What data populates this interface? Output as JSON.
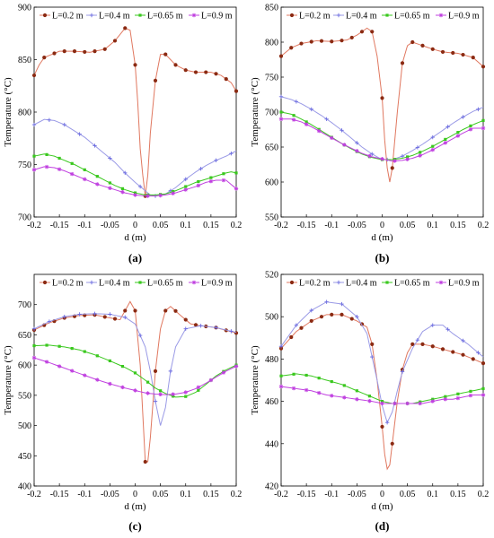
{
  "figure": {
    "series_names": [
      "L=0.2 m",
      "L=0.4 m",
      "L=0.65 m",
      "L=0.9 m"
    ],
    "series_colors": [
      "#8b2a12",
      "#6b6be0",
      "#3ac81e",
      "#c040e0"
    ],
    "series_line_colors": [
      "#e07860",
      "#9a9ae6",
      "#3ac81e",
      "#c040e0"
    ],
    "series_markers": [
      "circle",
      "plus",
      "filled-square",
      "star"
    ]
  },
  "chart_data": [
    {
      "type": "line",
      "panel_label": "(a)",
      "xlabel": "d (m)",
      "ylabel": "Temperature (°C)",
      "xlim": [
        -0.2,
        0.2
      ],
      "ylim": [
        700,
        900
      ],
      "xticks": [
        -0.2,
        -0.15,
        -0.1,
        -0.05,
        0,
        0.05,
        0.1,
        0.15,
        0.2
      ],
      "xtick_labels": [
        "-0.2",
        "-0.15",
        "-0.1",
        "-0.05",
        "0",
        "0.05",
        "0.1",
        "0.15",
        "0.2"
      ],
      "yticks": [
        700,
        750,
        800,
        850,
        900
      ],
      "ytick_labels": [
        "700",
        "750",
        "800",
        "850",
        "900"
      ],
      "grid": false,
      "legend": "top",
      "series": [
        {
          "name": "L=0.2 m",
          "x": [
            -0.2,
            -0.19,
            -0.18,
            -0.15,
            -0.12,
            -0.09,
            -0.06,
            -0.04,
            -0.02,
            -0.01,
            0.0,
            0.005,
            0.01,
            0.015,
            0.02,
            0.025,
            0.03,
            0.04,
            0.05,
            0.06,
            0.08,
            0.1,
            0.12,
            0.15,
            0.17,
            0.19,
            0.2
          ],
          "y": [
            835,
            845,
            852,
            858,
            858,
            857,
            860,
            868,
            880,
            878,
            845,
            810,
            765,
            740,
            720,
            740,
            780,
            830,
            855,
            855,
            845,
            840,
            838,
            838,
            835,
            828,
            820
          ]
        },
        {
          "name": "L=0.4 m",
          "x": [
            -0.2,
            -0.18,
            -0.16,
            -0.14,
            -0.12,
            -0.1,
            -0.08,
            -0.06,
            -0.04,
            -0.02,
            0.0,
            0.02,
            0.03,
            0.04,
            0.06,
            0.08,
            0.1,
            0.12,
            0.14,
            0.16,
            0.18,
            0.2
          ],
          "y": [
            788,
            793,
            792,
            788,
            782,
            776,
            768,
            760,
            752,
            742,
            733,
            725,
            721,
            720,
            722,
            728,
            736,
            743,
            749,
            754,
            758,
            763
          ]
        },
        {
          "name": "L=0.65 m",
          "x": [
            -0.2,
            -0.18,
            -0.16,
            -0.14,
            -0.12,
            -0.1,
            -0.08,
            -0.06,
            -0.04,
            -0.02,
            0.0,
            0.02,
            0.04,
            0.06,
            0.08,
            0.1,
            0.12,
            0.14,
            0.16,
            0.18,
            0.19,
            0.2
          ],
          "y": [
            758,
            760,
            758,
            754,
            750,
            745,
            740,
            735,
            730,
            726,
            723,
            721,
            721,
            722,
            725,
            729,
            733,
            736,
            739,
            742,
            743,
            742
          ]
        },
        {
          "name": "L=0.9 m",
          "x": [
            -0.2,
            -0.18,
            -0.16,
            -0.14,
            -0.12,
            -0.1,
            -0.08,
            -0.06,
            -0.04,
            -0.02,
            0.0,
            0.02,
            0.04,
            0.06,
            0.08,
            0.1,
            0.12,
            0.14,
            0.16,
            0.18,
            0.19,
            0.2
          ],
          "y": [
            745,
            748,
            747,
            744,
            740,
            736,
            732,
            729,
            726,
            723,
            721,
            720,
            720,
            721,
            723,
            726,
            729,
            733,
            735,
            735,
            731,
            727
          ]
        }
      ]
    },
    {
      "type": "line",
      "panel_label": "(b)",
      "xlabel": "d (m)",
      "ylabel": "Temperature (°C)",
      "xlim": [
        -0.2,
        0.2
      ],
      "ylim": [
        550,
        850
      ],
      "xticks": [
        -0.2,
        -0.15,
        -0.1,
        -0.05,
        0,
        0.05,
        0.1,
        0.15,
        0.2
      ],
      "xtick_labels": [
        "-0.2",
        "-0.15",
        "-0.1",
        "-0.05",
        "0",
        "0.05",
        "0.1",
        "0.15",
        "0.2"
      ],
      "yticks": [
        550,
        600,
        650,
        700,
        750,
        800,
        850
      ],
      "ytick_labels": [
        "550",
        "600",
        "650",
        "700",
        "750",
        "800",
        "850"
      ],
      "grid": false,
      "legend": "top",
      "series": [
        {
          "name": "L=0.2 m",
          "x": [
            -0.2,
            -0.18,
            -0.16,
            -0.13,
            -0.1,
            -0.07,
            -0.05,
            -0.03,
            -0.02,
            -0.01,
            0.0,
            0.005,
            0.01,
            0.015,
            0.02,
            0.03,
            0.04,
            0.05,
            0.06,
            0.08,
            0.1,
            0.12,
            0.15,
            0.18,
            0.2
          ],
          "y": [
            780,
            792,
            798,
            802,
            801,
            803,
            810,
            820,
            815,
            780,
            720,
            660,
            620,
            600,
            620,
            700,
            770,
            795,
            800,
            795,
            790,
            786,
            784,
            778,
            765
          ]
        },
        {
          "name": "L=0.4 m",
          "x": [
            -0.2,
            -0.18,
            -0.16,
            -0.14,
            -0.12,
            -0.1,
            -0.08,
            -0.06,
            -0.04,
            -0.02,
            0.0,
            0.02,
            0.04,
            0.06,
            0.08,
            0.1,
            0.12,
            0.14,
            0.16,
            0.18,
            0.2
          ],
          "y": [
            722,
            718,
            712,
            704,
            695,
            685,
            674,
            662,
            650,
            640,
            632,
            632,
            637,
            645,
            654,
            664,
            674,
            684,
            693,
            701,
            707
          ]
        },
        {
          "name": "L=0.65 m",
          "x": [
            -0.2,
            -0.18,
            -0.16,
            -0.14,
            -0.12,
            -0.1,
            -0.08,
            -0.06,
            -0.04,
            -0.02,
            0.0,
            0.02,
            0.04,
            0.06,
            0.08,
            0.1,
            0.12,
            0.14,
            0.16,
            0.18,
            0.2
          ],
          "y": [
            700,
            697,
            690,
            682,
            673,
            664,
            655,
            647,
            640,
            635,
            632,
            632,
            634,
            638,
            644,
            651,
            659,
            667,
            675,
            682,
            688
          ]
        },
        {
          "name": "L=0.9 m",
          "x": [
            -0.2,
            -0.18,
            -0.16,
            -0.14,
            -0.12,
            -0.1,
            -0.08,
            -0.06,
            -0.04,
            -0.02,
            0.0,
            0.02,
            0.04,
            0.06,
            0.08,
            0.1,
            0.12,
            0.14,
            0.16,
            0.18,
            0.2
          ],
          "y": [
            690,
            690,
            686,
            679,
            671,
            663,
            655,
            648,
            641,
            636,
            633,
            630,
            631,
            634,
            639,
            646,
            654,
            662,
            670,
            677,
            677
          ]
        }
      ]
    },
    {
      "type": "line",
      "panel_label": "(c)",
      "xlabel": "d (m)",
      "ylabel": "Temperature (°C)",
      "xlim": [
        -0.2,
        0.2
      ],
      "ylim": [
        400,
        750
      ],
      "xticks": [
        -0.2,
        -0.15,
        -0.1,
        -0.05,
        0,
        0.05,
        0.1,
        0.15,
        0.2
      ],
      "xtick_labels": [
        "-0.2",
        "-0.15",
        "-0.1",
        "-0.05",
        "0",
        "0.05",
        "0.1",
        "0.15",
        "0.2"
      ],
      "yticks": [
        400,
        450,
        500,
        550,
        600,
        650,
        700
      ],
      "ytick_labels": [
        "400",
        "450",
        "500",
        "550",
        "600",
        "650",
        "700"
      ],
      "grid": false,
      "legend": "top",
      "series": [
        {
          "name": "L=0.2 m",
          "x": [
            -0.2,
            -0.17,
            -0.14,
            -0.11,
            -0.08,
            -0.05,
            -0.03,
            -0.02,
            -0.01,
            0.0,
            0.01,
            0.015,
            0.02,
            0.025,
            0.03,
            0.04,
            0.05,
            0.06,
            0.07,
            0.09,
            0.11,
            0.13,
            0.16,
            0.2
          ],
          "y": [
            658,
            670,
            678,
            682,
            683,
            678,
            675,
            690,
            705,
            690,
            600,
            520,
            440,
            440,
            480,
            590,
            660,
            690,
            697,
            682,
            668,
            665,
            662,
            653
          ]
        },
        {
          "name": "L=0.4 m",
          "x": [
            -0.2,
            -0.17,
            -0.14,
            -0.11,
            -0.08,
            -0.05,
            -0.02,
            0.0,
            0.02,
            0.03,
            0.04,
            0.05,
            0.06,
            0.07,
            0.08,
            0.1,
            0.13,
            0.16,
            0.2
          ],
          "y": [
            660,
            672,
            680,
            684,
            685,
            684,
            679,
            668,
            630,
            590,
            540,
            500,
            530,
            590,
            630,
            660,
            665,
            662,
            654
          ]
        },
        {
          "name": "L=0.65 m",
          "x": [
            -0.2,
            -0.17,
            -0.14,
            -0.11,
            -0.08,
            -0.05,
            -0.02,
            0.0,
            0.02,
            0.04,
            0.06,
            0.08,
            0.1,
            0.12,
            0.14,
            0.16,
            0.18,
            0.2
          ],
          "y": [
            632,
            633,
            630,
            625,
            617,
            607,
            596,
            587,
            575,
            562,
            553,
            547,
            548,
            555,
            568,
            582,
            592,
            600
          ]
        },
        {
          "name": "L=0.9 m",
          "x": [
            -0.2,
            -0.17,
            -0.14,
            -0.11,
            -0.08,
            -0.05,
            -0.02,
            0.0,
            0.02,
            0.04,
            0.06,
            0.08,
            0.1,
            0.12,
            0.14,
            0.16,
            0.18,
            0.2
          ],
          "y": [
            612,
            604,
            595,
            586,
            577,
            569,
            562,
            558,
            554,
            552,
            551,
            552,
            555,
            561,
            570,
            580,
            590,
            598
          ]
        }
      ]
    },
    {
      "type": "line",
      "panel_label": "(d)",
      "xlabel": "d (m)",
      "ylabel": "Temperature (°C)",
      "xlim": [
        -0.2,
        0.2
      ],
      "ylim": [
        420,
        520
      ],
      "xticks": [
        -0.2,
        -0.15,
        -0.1,
        -0.05,
        0,
        0.05,
        0.1,
        0.15,
        0.2
      ],
      "xtick_labels": [
        "-0.2",
        "-0.15",
        "-0.1",
        "-0.05",
        "0",
        "0.05",
        "0.1",
        "0.15",
        "0.2"
      ],
      "yticks": [
        420,
        440,
        460,
        480,
        500,
        520
      ],
      "ytick_labels": [
        "420",
        "440",
        "460",
        "480",
        "500",
        "520"
      ],
      "grid": false,
      "legend": "top",
      "series": [
        {
          "name": "L=0.2 m",
          "x": [
            -0.2,
            -0.17,
            -0.14,
            -0.11,
            -0.08,
            -0.05,
            -0.03,
            -0.02,
            -0.01,
            0.0,
            0.005,
            0.01,
            0.015,
            0.02,
            0.03,
            0.04,
            0.05,
            0.06,
            0.08,
            0.1,
            0.13,
            0.16,
            0.2
          ],
          "y": [
            485,
            493,
            498,
            501,
            501,
            498,
            495,
            487,
            470,
            448,
            435,
            428,
            430,
            440,
            460,
            475,
            483,
            487,
            487,
            486,
            484,
            482,
            478
          ]
        },
        {
          "name": "L=0.4 m",
          "x": [
            -0.2,
            -0.17,
            -0.14,
            -0.11,
            -0.08,
            -0.05,
            -0.03,
            -0.01,
            0.0,
            0.01,
            0.02,
            0.03,
            0.04,
            0.06,
            0.08,
            0.1,
            0.12,
            0.14,
            0.17,
            0.2
          ],
          "y": [
            486,
            496,
            503,
            507,
            506,
            500,
            492,
            470,
            458,
            450,
            455,
            465,
            474,
            485,
            493,
            496,
            496,
            492,
            487,
            481
          ]
        },
        {
          "name": "L=0.65 m",
          "x": [
            -0.2,
            -0.17,
            -0.14,
            -0.11,
            -0.08,
            -0.05,
            -0.02,
            0.0,
            0.02,
            0.04,
            0.06,
            0.08,
            0.1,
            0.12,
            0.14,
            0.16,
            0.18,
            0.2
          ],
          "y": [
            472,
            473,
            472,
            470,
            468,
            465,
            462,
            460,
            459,
            459,
            459,
            460,
            461,
            462,
            463,
            464,
            465,
            466
          ]
        },
        {
          "name": "L=0.9 m",
          "x": [
            -0.2,
            -0.17,
            -0.14,
            -0.11,
            -0.08,
            -0.05,
            -0.02,
            0.0,
            0.02,
            0.04,
            0.06,
            0.08,
            0.1,
            0.12,
            0.14,
            0.16,
            0.18,
            0.2
          ],
          "y": [
            467,
            466,
            465,
            463,
            462,
            461,
            460,
            459,
            459,
            459,
            459,
            459,
            460,
            461,
            461,
            462,
            463,
            463
          ]
        }
      ]
    }
  ]
}
